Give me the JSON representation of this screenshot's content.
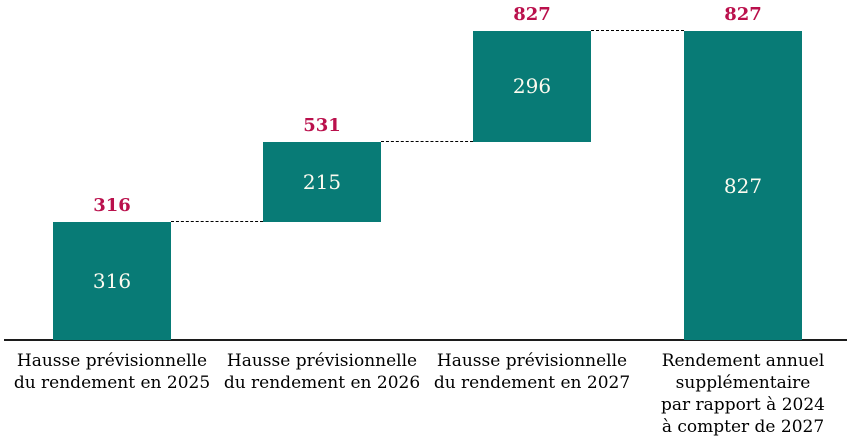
{
  "chart_data": {
    "type": "bar",
    "subtype": "waterfall",
    "title": "",
    "xlabel": "",
    "ylabel": "",
    "grid": false,
    "legend": false,
    "ylim": [
      0,
      827
    ],
    "categories": [
      "Hausse prévisionnelle\ndu rendement en 2025",
      "Hausse prévisionnelle\ndu rendement en 2026",
      "Hausse prévisionnelle\ndu rendement en 2027",
      "Rendement annuel\nsupplémentaire\npar rapport à 2024\nà compter de 2027"
    ],
    "values": [
      316,
      215,
      296,
      827
    ],
    "bar_starts": [
      0,
      316,
      531,
      0
    ],
    "bar_ends": [
      316,
      531,
      827,
      827
    ],
    "cumulative_labels": [
      "316",
      "531",
      "827",
      "827"
    ],
    "connector_style": "dotted",
    "colors": {
      "bar": "#087b76",
      "bar_value_text": "#fdfbf0",
      "cumulative_label": "#ba104c",
      "connector": "#000000",
      "axis": "#1c1c1c",
      "category_text": "#000000",
      "background": "#ffffff"
    }
  }
}
